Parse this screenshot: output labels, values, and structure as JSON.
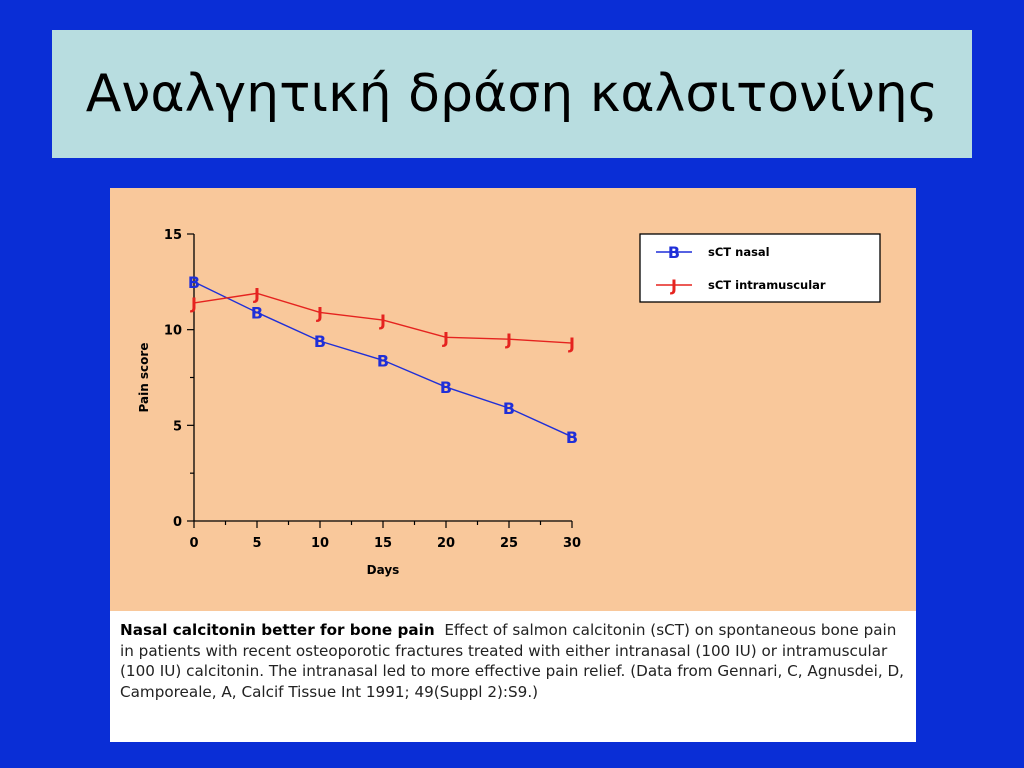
{
  "slide": {
    "title": "Αναλγητική δράση καλσιτονίνης"
  },
  "caption": {
    "bold": "Nasal calcitonin better for bone pain",
    "text": "Effect of salmon calcitonin (sCT) on spontaneous bone pain in patients with recent osteoporotic fractures treated with either intranasal (100 IU) or intramuscular (100 IU) calcitonin. The intranasal led to more effective pain relief. (Data from Gennari, C, Agnusdei, D, Camporeale, A, Calcif Tissue Int 1991; 49(Suppl 2):S9.)"
  },
  "chart_data": {
    "type": "line",
    "xlabel": "Days",
    "ylabel": "Pain score",
    "x": [
      0,
      5,
      10,
      15,
      20,
      25,
      30
    ],
    "xticks": [
      "0",
      "5",
      "10",
      "15",
      "20",
      "25",
      "30"
    ],
    "yticks": [
      "0",
      "5",
      "10",
      "15"
    ],
    "xlim": [
      0,
      30
    ],
    "ylim": [
      0,
      15
    ],
    "grid": false,
    "legend_position": "top-right",
    "series": [
      {
        "name": "sCT nasal",
        "marker": "B",
        "color": "#1f2fd8",
        "values": [
          12.5,
          10.9,
          9.4,
          8.4,
          7.0,
          5.9,
          4.4
        ]
      },
      {
        "name": "sCT intramuscular",
        "marker": "J",
        "color": "#e5231f",
        "values": [
          11.4,
          11.9,
          10.9,
          10.5,
          9.6,
          9.5,
          9.3
        ]
      }
    ]
  }
}
